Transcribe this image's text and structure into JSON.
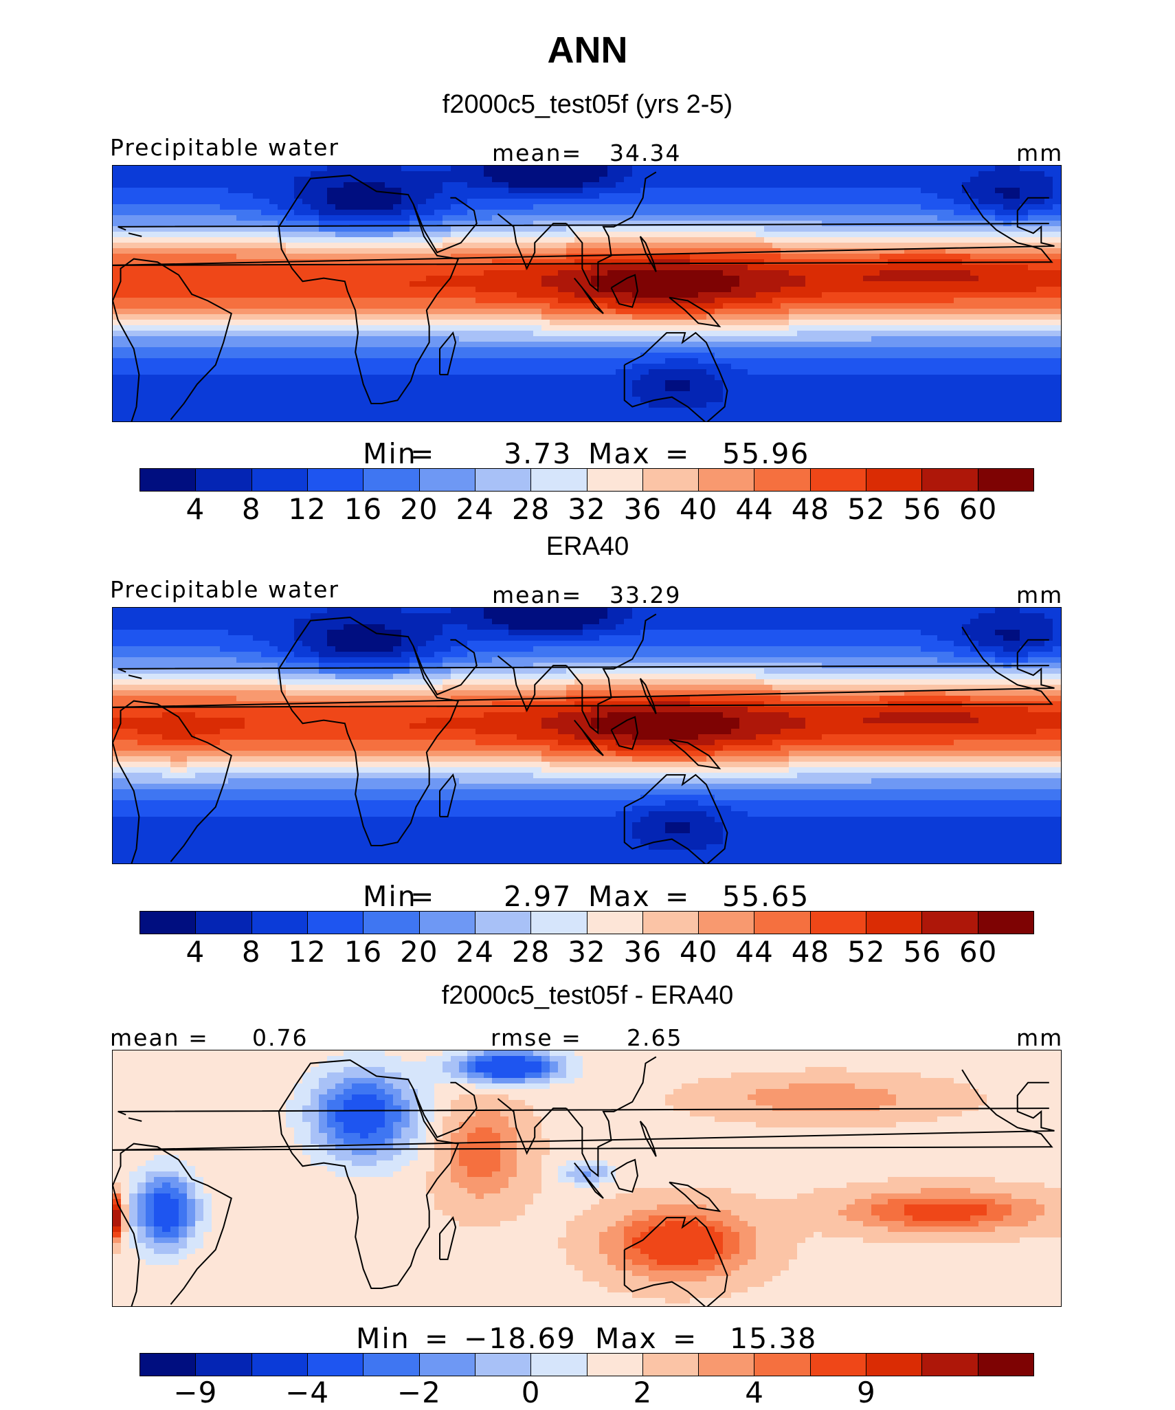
{
  "title": "ANN",
  "colors": [
    "#000e80",
    "#0425b4",
    "#0b3bd8",
    "#1e55f0",
    "#3f76f2",
    "#6e98f4",
    "#a8c1f7",
    "#d6e5fb",
    "#fde5d7",
    "#fbc4a6",
    "#f8996f",
    "#f5703f",
    "#ef4718",
    "#da2c04",
    "#ae1709",
    "#7e0303"
  ],
  "land_color": "#000000",
  "panels": [
    {
      "title": "f2000c5_test05f (yrs 2-5)",
      "left_label": "Precipitable water",
      "center_label": "mean=",
      "center_value": "34.34",
      "units": "mm",
      "min_label": "Min",
      "min_value": "3.73",
      "max_label": "Max",
      "max_value": "55.96",
      "colorbar_ticks": [
        "4",
        "8",
        "12",
        "16",
        "20",
        "24",
        "28",
        "32",
        "36",
        "40",
        "44",
        "48",
        "52",
        "56",
        "60"
      ]
    },
    {
      "title": "ERA40",
      "left_label": "Precipitable water",
      "center_label": "mean=",
      "center_value": "33.29",
      "units": "mm",
      "min_label": "Min",
      "min_value": "2.97",
      "max_label": "Max",
      "max_value": "55.65",
      "colorbar_ticks": [
        "4",
        "8",
        "12",
        "16",
        "20",
        "24",
        "28",
        "32",
        "36",
        "40",
        "44",
        "48",
        "52",
        "56",
        "60"
      ]
    },
    {
      "title": "f2000c5_test05f - ERA40",
      "left_label": "mean =",
      "left_value": "0.76",
      "center_label": "rmse =",
      "center_value": "2.65",
      "units": "mm",
      "min_label": "Min",
      "min_value": "−18.69",
      "max_label": "Max",
      "max_value": "15.38",
      "colorbar_ticks": [
        "−9",
        "",
        "−4",
        "",
        "−2",
        "",
        "0",
        "",
        "2",
        "",
        "4",
        "",
        "9",
        "",
        ""
      ]
    }
  ],
  "chart_data": [
    {
      "type": "heatmap",
      "title": "f2000c5_test05f (yrs 2-5)",
      "variable": "Precipitable water",
      "units": "mm",
      "mean": 34.34,
      "min": 3.73,
      "max": 55.96,
      "levels": [
        4,
        8,
        12,
        16,
        20,
        24,
        28,
        32,
        36,
        40,
        44,
        48,
        52,
        56,
        60
      ],
      "xlim_lon": [
        -80,
        280
      ],
      "ylim_lat": [
        -40,
        40
      ],
      "features": [
        {
          "lon": 120,
          "lat": 5,
          "value": 54
        },
        {
          "lon": 150,
          "lat": 8,
          "value": 50
        },
        {
          "lon": 80,
          "lat": -5,
          "value": 46
        },
        {
          "lon": 240,
          "lat": 8,
          "value": 48
        },
        {
          "lon": -30,
          "lat": 8,
          "value": 46
        },
        {
          "lon": 15,
          "lat": 25,
          "value": 12
        },
        {
          "lon": 80,
          "lat": 38,
          "value": 8
        },
        {
          "lon": 135,
          "lat": -28,
          "value": 20
        },
        {
          "lon": 250,
          "lat": -25,
          "value": 24
        }
      ]
    },
    {
      "type": "heatmap",
      "title": "ERA40",
      "variable": "Precipitable water",
      "units": "mm",
      "mean": 33.29,
      "min": 2.97,
      "max": 55.65,
      "levels": [
        4,
        8,
        12,
        16,
        20,
        24,
        28,
        32,
        36,
        40,
        44,
        48,
        52,
        56,
        60
      ],
      "xlim_lon": [
        -80,
        280
      ],
      "ylim_lat": [
        -40,
        40
      ],
      "features": [
        {
          "lon": 120,
          "lat": 3,
          "value": 55
        },
        {
          "lon": 150,
          "lat": 5,
          "value": 50
        },
        {
          "lon": 80,
          "lat": -5,
          "value": 46
        },
        {
          "lon": 240,
          "lat": 8,
          "value": 48
        },
        {
          "lon": -60,
          "lat": -3,
          "value": 46
        },
        {
          "lon": 15,
          "lat": 25,
          "value": 14
        },
        {
          "lon": 85,
          "lat": 37,
          "value": 6
        },
        {
          "lon": 135,
          "lat": -28,
          "value": 18
        },
        {
          "lon": 250,
          "lat": -25,
          "value": 24
        }
      ]
    },
    {
      "type": "heatmap",
      "title": "f2000c5_test05f - ERA40",
      "units": "mm",
      "mean": 0.76,
      "rmse": 2.65,
      "min": -18.69,
      "max": 15.38,
      "levels": [
        -9,
        -6,
        -4,
        -3,
        -2,
        -1,
        0,
        1,
        2,
        3,
        4,
        6,
        9
      ],
      "xlim_lon": [
        -80,
        280
      ],
      "ylim_lat": [
        -40,
        40
      ],
      "features": [
        {
          "lon": 135,
          "lat": -20,
          "value": 6
        },
        {
          "lon": 240,
          "lat": -10,
          "value": 5
        },
        {
          "lon": 50,
          "lat": 10,
          "value": 4
        },
        {
          "lon": 10,
          "lat": 20,
          "value": -6
        },
        {
          "lon": -60,
          "lat": -10,
          "value": -6
        },
        {
          "lon": 60,
          "lat": 35,
          "value": -9
        },
        {
          "lon": -78,
          "lat": -12,
          "value": 12
        },
        {
          "lon": 200,
          "lat": 25,
          "value": 3
        }
      ]
    }
  ]
}
